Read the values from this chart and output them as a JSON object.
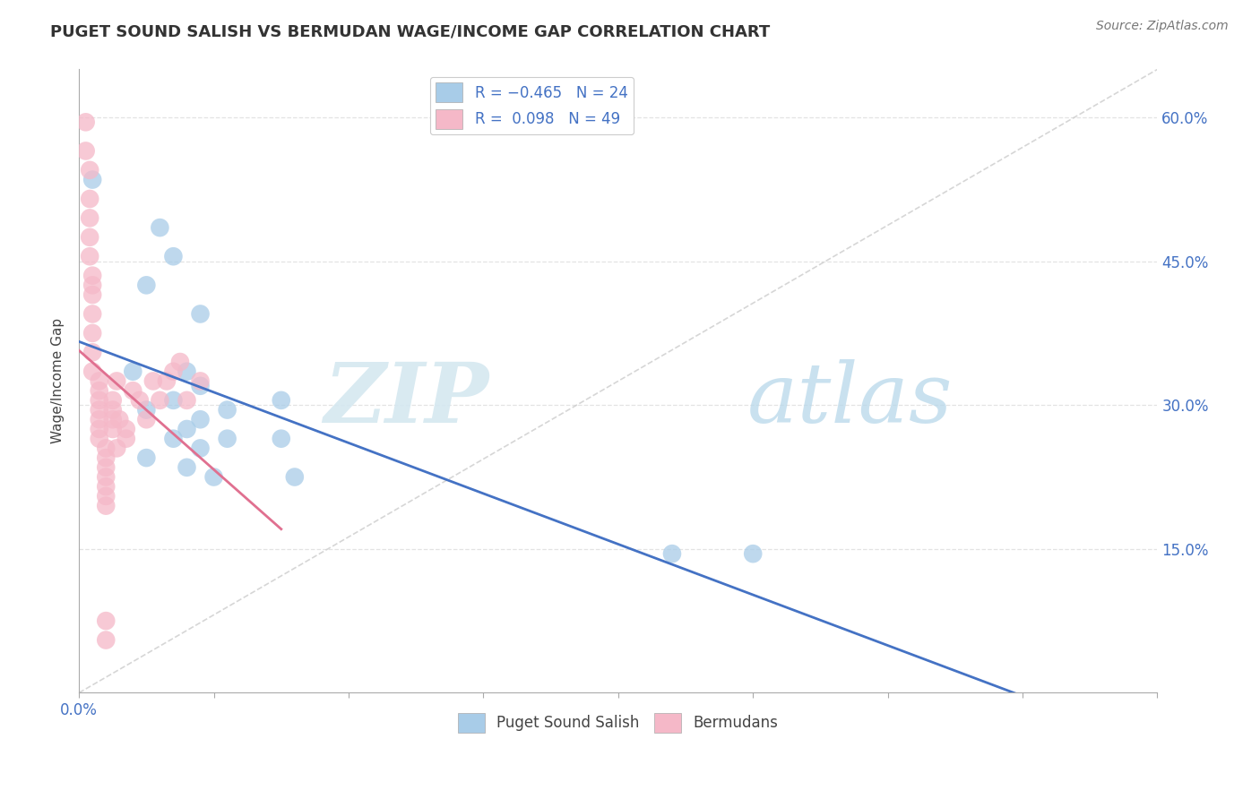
{
  "title": "PUGET SOUND SALISH VS BERMUDAN WAGE/INCOME GAP CORRELATION CHART",
  "source": "Source: ZipAtlas.com",
  "ylabel": "Wage/Income Gap",
  "xlim": [
    0.0,
    0.8
  ],
  "ylim": [
    0.0,
    0.65
  ],
  "xtick_vals": [
    0.0,
    0.1,
    0.2,
    0.3,
    0.4,
    0.5,
    0.6,
    0.7,
    0.8
  ],
  "xtick_labels_shown": {
    "0.0": "0.0%"
  },
  "ytick_vals": [
    0.15,
    0.3,
    0.45,
    0.6
  ],
  "right_ytick_labels": [
    "15.0%",
    "30.0%",
    "45.0%",
    "60.0%"
  ],
  "blue_color": "#a8cce8",
  "pink_color": "#f5b8c8",
  "blue_line_color": "#4472c4",
  "pink_line_color": "#e07090",
  "dash_line_color": "#cccccc",
  "blue_scatter": [
    [
      0.01,
      0.535
    ],
    [
      0.06,
      0.485
    ],
    [
      0.07,
      0.455
    ],
    [
      0.05,
      0.425
    ],
    [
      0.09,
      0.395
    ],
    [
      0.04,
      0.335
    ],
    [
      0.08,
      0.335
    ],
    [
      0.09,
      0.32
    ],
    [
      0.07,
      0.305
    ],
    [
      0.05,
      0.295
    ],
    [
      0.11,
      0.295
    ],
    [
      0.09,
      0.285
    ],
    [
      0.08,
      0.275
    ],
    [
      0.07,
      0.265
    ],
    [
      0.11,
      0.265
    ],
    [
      0.09,
      0.255
    ],
    [
      0.05,
      0.245
    ],
    [
      0.08,
      0.235
    ],
    [
      0.1,
      0.225
    ],
    [
      0.15,
      0.305
    ],
    [
      0.15,
      0.265
    ],
    [
      0.16,
      0.225
    ],
    [
      0.44,
      0.145
    ],
    [
      0.5,
      0.145
    ]
  ],
  "pink_scatter": [
    [
      0.005,
      0.595
    ],
    [
      0.005,
      0.565
    ],
    [
      0.008,
      0.545
    ],
    [
      0.008,
      0.515
    ],
    [
      0.008,
      0.495
    ],
    [
      0.008,
      0.475
    ],
    [
      0.008,
      0.455
    ],
    [
      0.01,
      0.435
    ],
    [
      0.01,
      0.425
    ],
    [
      0.01,
      0.415
    ],
    [
      0.01,
      0.395
    ],
    [
      0.01,
      0.375
    ],
    [
      0.01,
      0.355
    ],
    [
      0.01,
      0.335
    ],
    [
      0.015,
      0.325
    ],
    [
      0.015,
      0.315
    ],
    [
      0.015,
      0.305
    ],
    [
      0.015,
      0.295
    ],
    [
      0.015,
      0.285
    ],
    [
      0.015,
      0.275
    ],
    [
      0.015,
      0.265
    ],
    [
      0.02,
      0.255
    ],
    [
      0.02,
      0.245
    ],
    [
      0.02,
      0.235
    ],
    [
      0.02,
      0.225
    ],
    [
      0.02,
      0.215
    ],
    [
      0.02,
      0.205
    ],
    [
      0.02,
      0.195
    ],
    [
      0.02,
      0.075
    ],
    [
      0.02,
      0.055
    ],
    [
      0.025,
      0.305
    ],
    [
      0.025,
      0.295
    ],
    [
      0.025,
      0.285
    ],
    [
      0.025,
      0.275
    ],
    [
      0.028,
      0.325
    ],
    [
      0.028,
      0.255
    ],
    [
      0.03,
      0.285
    ],
    [
      0.035,
      0.275
    ],
    [
      0.035,
      0.265
    ],
    [
      0.04,
      0.315
    ],
    [
      0.045,
      0.305
    ],
    [
      0.05,
      0.285
    ],
    [
      0.055,
      0.325
    ],
    [
      0.06,
      0.305
    ],
    [
      0.065,
      0.325
    ],
    [
      0.07,
      0.335
    ],
    [
      0.075,
      0.345
    ],
    [
      0.08,
      0.305
    ],
    [
      0.09,
      0.325
    ]
  ],
  "watermark_zip": "ZIP",
  "watermark_atlas": "atlas",
  "background_color": "#ffffff",
  "grid_color": "#dddddd"
}
